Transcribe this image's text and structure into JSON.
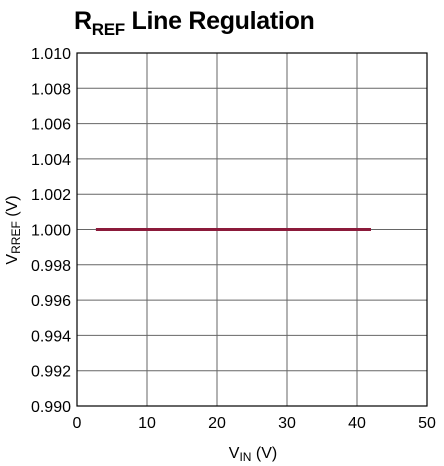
{
  "chart_data": {
    "type": "line",
    "title": {
      "main": "R",
      "sub": "REF",
      "rest": " Line Regulation"
    },
    "xlabel": {
      "main": "V",
      "sub": "IN",
      "unit": " (V)"
    },
    "ylabel": {
      "main": "V",
      "sub": "RREF",
      "unit": " (V)"
    },
    "xlim": [
      0,
      50
    ],
    "ylim": [
      0.99,
      1.01
    ],
    "xticks": [
      "0",
      "10",
      "20",
      "30",
      "40",
      "50"
    ],
    "yticks": [
      "0.990",
      "0.992",
      "0.994",
      "0.996",
      "0.998",
      "1.000",
      "1.002",
      "1.004",
      "1.006",
      "1.008",
      "1.010"
    ],
    "grid": true,
    "series": [
      {
        "x": [
          2.7,
          42
        ],
        "y": [
          1.0,
          1.0
        ],
        "color": "#8b1a3a"
      }
    ]
  }
}
